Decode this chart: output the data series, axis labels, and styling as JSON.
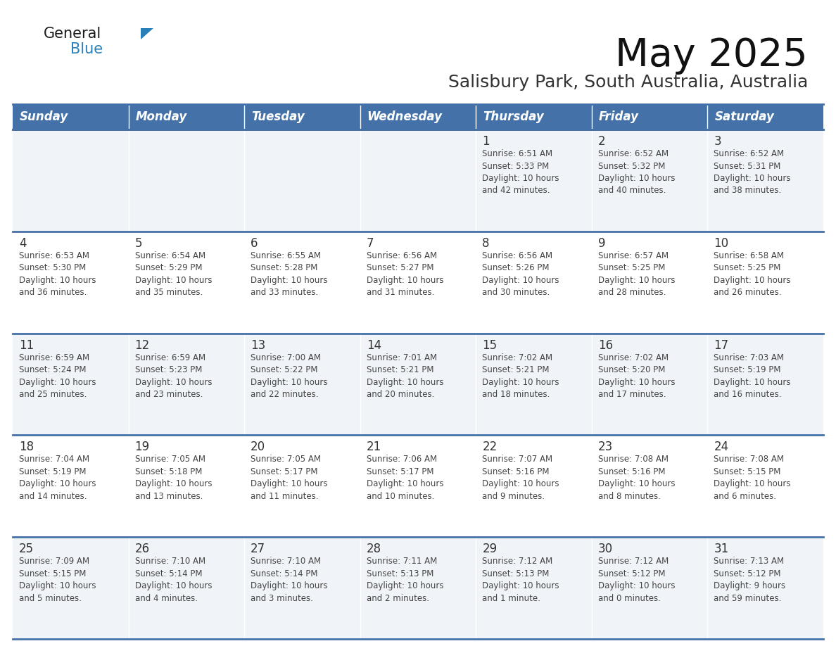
{
  "title": "May 2025",
  "subtitle": "Salisbury Park, South Australia, Australia",
  "header_bg": "#4472a8",
  "header_text": "#ffffff",
  "row_bg_odd": "#f0f4f8",
  "row_bg_even": "#ffffff",
  "separator_color": "#4472a8",
  "text_color": "#333333",
  "days_of_week": [
    "Sunday",
    "Monday",
    "Tuesday",
    "Wednesday",
    "Thursday",
    "Friday",
    "Saturday"
  ],
  "weeks": [
    [
      {
        "day": "",
        "info": ""
      },
      {
        "day": "",
        "info": ""
      },
      {
        "day": "",
        "info": ""
      },
      {
        "day": "",
        "info": ""
      },
      {
        "day": "1",
        "info": "Sunrise: 6:51 AM\nSunset: 5:33 PM\nDaylight: 10 hours\nand 42 minutes."
      },
      {
        "day": "2",
        "info": "Sunrise: 6:52 AM\nSunset: 5:32 PM\nDaylight: 10 hours\nand 40 minutes."
      },
      {
        "day": "3",
        "info": "Sunrise: 6:52 AM\nSunset: 5:31 PM\nDaylight: 10 hours\nand 38 minutes."
      }
    ],
    [
      {
        "day": "4",
        "info": "Sunrise: 6:53 AM\nSunset: 5:30 PM\nDaylight: 10 hours\nand 36 minutes."
      },
      {
        "day": "5",
        "info": "Sunrise: 6:54 AM\nSunset: 5:29 PM\nDaylight: 10 hours\nand 35 minutes."
      },
      {
        "day": "6",
        "info": "Sunrise: 6:55 AM\nSunset: 5:28 PM\nDaylight: 10 hours\nand 33 minutes."
      },
      {
        "day": "7",
        "info": "Sunrise: 6:56 AM\nSunset: 5:27 PM\nDaylight: 10 hours\nand 31 minutes."
      },
      {
        "day": "8",
        "info": "Sunrise: 6:56 AM\nSunset: 5:26 PM\nDaylight: 10 hours\nand 30 minutes."
      },
      {
        "day": "9",
        "info": "Sunrise: 6:57 AM\nSunset: 5:25 PM\nDaylight: 10 hours\nand 28 minutes."
      },
      {
        "day": "10",
        "info": "Sunrise: 6:58 AM\nSunset: 5:25 PM\nDaylight: 10 hours\nand 26 minutes."
      }
    ],
    [
      {
        "day": "11",
        "info": "Sunrise: 6:59 AM\nSunset: 5:24 PM\nDaylight: 10 hours\nand 25 minutes."
      },
      {
        "day": "12",
        "info": "Sunrise: 6:59 AM\nSunset: 5:23 PM\nDaylight: 10 hours\nand 23 minutes."
      },
      {
        "day": "13",
        "info": "Sunrise: 7:00 AM\nSunset: 5:22 PM\nDaylight: 10 hours\nand 22 minutes."
      },
      {
        "day": "14",
        "info": "Sunrise: 7:01 AM\nSunset: 5:21 PM\nDaylight: 10 hours\nand 20 minutes."
      },
      {
        "day": "15",
        "info": "Sunrise: 7:02 AM\nSunset: 5:21 PM\nDaylight: 10 hours\nand 18 minutes."
      },
      {
        "day": "16",
        "info": "Sunrise: 7:02 AM\nSunset: 5:20 PM\nDaylight: 10 hours\nand 17 minutes."
      },
      {
        "day": "17",
        "info": "Sunrise: 7:03 AM\nSunset: 5:19 PM\nDaylight: 10 hours\nand 16 minutes."
      }
    ],
    [
      {
        "day": "18",
        "info": "Sunrise: 7:04 AM\nSunset: 5:19 PM\nDaylight: 10 hours\nand 14 minutes."
      },
      {
        "day": "19",
        "info": "Sunrise: 7:05 AM\nSunset: 5:18 PM\nDaylight: 10 hours\nand 13 minutes."
      },
      {
        "day": "20",
        "info": "Sunrise: 7:05 AM\nSunset: 5:17 PM\nDaylight: 10 hours\nand 11 minutes."
      },
      {
        "day": "21",
        "info": "Sunrise: 7:06 AM\nSunset: 5:17 PM\nDaylight: 10 hours\nand 10 minutes."
      },
      {
        "day": "22",
        "info": "Sunrise: 7:07 AM\nSunset: 5:16 PM\nDaylight: 10 hours\nand 9 minutes."
      },
      {
        "day": "23",
        "info": "Sunrise: 7:08 AM\nSunset: 5:16 PM\nDaylight: 10 hours\nand 8 minutes."
      },
      {
        "day": "24",
        "info": "Sunrise: 7:08 AM\nSunset: 5:15 PM\nDaylight: 10 hours\nand 6 minutes."
      }
    ],
    [
      {
        "day": "25",
        "info": "Sunrise: 7:09 AM\nSunset: 5:15 PM\nDaylight: 10 hours\nand 5 minutes."
      },
      {
        "day": "26",
        "info": "Sunrise: 7:10 AM\nSunset: 5:14 PM\nDaylight: 10 hours\nand 4 minutes."
      },
      {
        "day": "27",
        "info": "Sunrise: 7:10 AM\nSunset: 5:14 PM\nDaylight: 10 hours\nand 3 minutes."
      },
      {
        "day": "28",
        "info": "Sunrise: 7:11 AM\nSunset: 5:13 PM\nDaylight: 10 hours\nand 2 minutes."
      },
      {
        "day": "29",
        "info": "Sunrise: 7:12 AM\nSunset: 5:13 PM\nDaylight: 10 hours\nand 1 minute."
      },
      {
        "day": "30",
        "info": "Sunrise: 7:12 AM\nSunset: 5:12 PM\nDaylight: 10 hours\nand 0 minutes."
      },
      {
        "day": "31",
        "info": "Sunrise: 7:13 AM\nSunset: 5:12 PM\nDaylight: 9 hours\nand 59 minutes."
      }
    ]
  ],
  "logo_color_general": "#1a1a1a",
  "logo_color_blue": "#2980b9"
}
